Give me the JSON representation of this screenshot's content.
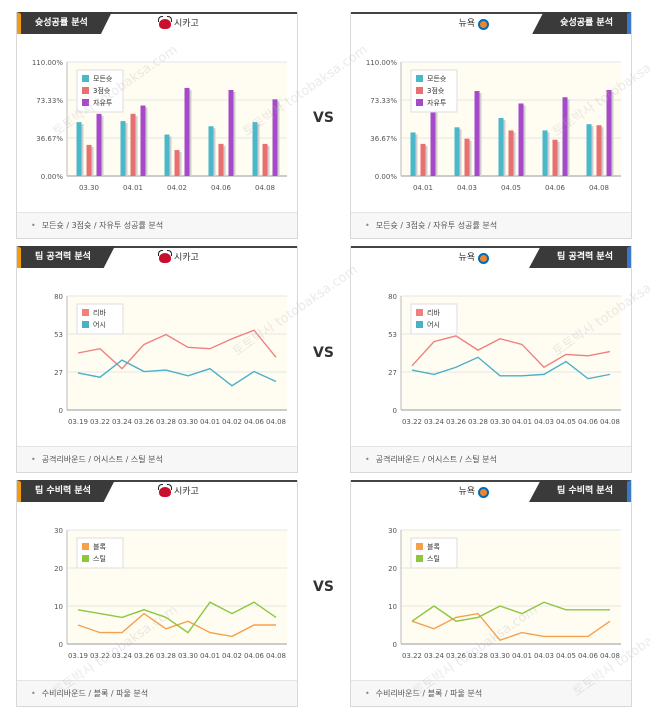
{
  "vs_label": "VS",
  "watermark": "토토박사 totobaksa.com",
  "colors": {
    "bar_all": "#4ab8c8",
    "bar_3pt": "#e8706f",
    "bar_ft": "#a64ac9",
    "line_red": "#f08080",
    "line_blue": "#4ab0c8",
    "line_orange": "#f5a04a",
    "line_green": "#8ec63f"
  },
  "panels": [
    {
      "id": "shoot-left",
      "side": "left",
      "tab": "슛성공률 분석",
      "team": "시카고",
      "team_icon": "bulls-logo-icon",
      "footer": "모든슛 / 3점슛 / 자유투 성공률 분석",
      "chart_data": {
        "type": "bar",
        "categories": [
          "03.30",
          "04.01",
          "04.02",
          "04.06",
          "04.08"
        ],
        "y_ticks": [
          "0.00%",
          "36.67%",
          "73.33%",
          "110.00%"
        ],
        "ylim": [
          0,
          110
        ],
        "legend": [
          "모든슛",
          "3점슛",
          "자유투"
        ],
        "series": [
          {
            "name": "모든슛",
            "values": [
              52,
              53,
              40,
              48,
              52
            ]
          },
          {
            "name": "3점슛",
            "values": [
              30,
              60,
              25,
              31,
              31
            ]
          },
          {
            "name": "자유투",
            "values": [
              60,
              68,
              85,
              83,
              74
            ]
          }
        ]
      }
    },
    {
      "id": "shoot-right",
      "side": "right",
      "tab": "슛성공률 분석",
      "team": "뉴욕",
      "team_icon": "knicks-logo-icon",
      "footer": "모든슛 / 3점슛 / 자유투 성공률 분석",
      "chart_data": {
        "type": "bar",
        "categories": [
          "04.01",
          "04.03",
          "04.05",
          "04.06",
          "04.08"
        ],
        "y_ticks": [
          "0.00%",
          "36.67%",
          "73.33%",
          "110.00%"
        ],
        "ylim": [
          0,
          110
        ],
        "legend": [
          "모든슛",
          "3점슛",
          "자유투"
        ],
        "series": [
          {
            "name": "모든슛",
            "values": [
              42,
              47,
              56,
              44,
              50
            ]
          },
          {
            "name": "3점슛",
            "values": [
              31,
              36,
              44,
              35,
              49
            ]
          },
          {
            "name": "자유투",
            "values": [
              65,
              82,
              70,
              76,
              83
            ]
          }
        ]
      }
    },
    {
      "id": "attack-left",
      "side": "left",
      "tab": "팀 공격력 분석",
      "team": "시카고",
      "team_icon": "bulls-logo-icon",
      "footer": "공격리바운드 / 어시스트 / 스틸 분석",
      "chart_data": {
        "type": "line",
        "categories": [
          "03.19",
          "03.22",
          "03.24",
          "03.26",
          "03.28",
          "03.30",
          "04.01",
          "04.02",
          "04.06",
          "04.08"
        ],
        "y_ticks": [
          "0",
          "27",
          "53",
          "80"
        ],
        "ylim": [
          0,
          80
        ],
        "legend": [
          "리바",
          "어시"
        ],
        "series": [
          {
            "name": "리바",
            "values": [
              40,
              43,
              29,
              46,
              53,
              44,
              43,
              50,
              56,
              37
            ]
          },
          {
            "name": "어시",
            "values": [
              26,
              23,
              35,
              27,
              28,
              24,
              29,
              17,
              27,
              20
            ]
          }
        ]
      }
    },
    {
      "id": "attack-right",
      "side": "right",
      "tab": "팀 공격력 분석",
      "team": "뉴욕",
      "team_icon": "knicks-logo-icon",
      "footer": "공격리바운드 / 어시스트 / 스틸 분석",
      "chart_data": {
        "type": "line",
        "categories": [
          "03.22",
          "03.24",
          "03.26",
          "03.28",
          "03.30",
          "04.01",
          "04.03",
          "04.05",
          "04.06",
          "04.08"
        ],
        "y_ticks": [
          "0",
          "27",
          "53",
          "80"
        ],
        "ylim": [
          0,
          80
        ],
        "legend": [
          "리바",
          "어시"
        ],
        "series": [
          {
            "name": "리바",
            "values": [
              31,
              48,
              52,
              42,
              50,
              46,
              30,
              39,
              38,
              41
            ]
          },
          {
            "name": "어시",
            "values": [
              28,
              25,
              30,
              37,
              24,
              24,
              25,
              34,
              22,
              25
            ]
          }
        ]
      }
    },
    {
      "id": "defense-left",
      "side": "left",
      "tab": "팀 수비력 분석",
      "team": "시카고",
      "team_icon": "bulls-logo-icon",
      "footer": "수비리바운드 / 블록 / 파울 분석",
      "chart_data": {
        "type": "line",
        "categories": [
          "03.19",
          "03.22",
          "03.24",
          "03.26",
          "03.28",
          "03.30",
          "04.01",
          "04.02",
          "04.06",
          "04.08"
        ],
        "y_ticks": [
          "0",
          "10",
          "20",
          "30"
        ],
        "ylim": [
          0,
          30
        ],
        "legend": [
          "블록",
          "스틸"
        ],
        "series": [
          {
            "name": "블록",
            "values": [
              5,
              3,
              3,
              8,
              4,
              6,
              3,
              2,
              5,
              5
            ]
          },
          {
            "name": "스틸",
            "values": [
              9,
              8,
              7,
              9,
              7,
              3,
              11,
              8,
              11,
              7
            ]
          }
        ]
      }
    },
    {
      "id": "defense-right",
      "side": "right",
      "tab": "팀 수비력 분석",
      "team": "뉴욕",
      "team_icon": "knicks-logo-icon",
      "footer": "수비리바운드 / 블록 / 파울 분석",
      "chart_data": {
        "type": "line",
        "categories": [
          "03.22",
          "03.24",
          "03.26",
          "03.28",
          "03.30",
          "04.01",
          "04.03",
          "04.05",
          "04.06",
          "04.08"
        ],
        "y_ticks": [
          "0",
          "10",
          "20",
          "30"
        ],
        "ylim": [
          0,
          30
        ],
        "legend": [
          "블록",
          "스틸"
        ],
        "series": [
          {
            "name": "블록",
            "values": [
              6,
              4,
              7,
              8,
              1,
              3,
              2,
              2,
              2,
              6
            ]
          },
          {
            "name": "스틸",
            "values": [
              6,
              10,
              6,
              7,
              10,
              8,
              11,
              9,
              9,
              9
            ]
          }
        ]
      }
    }
  ]
}
